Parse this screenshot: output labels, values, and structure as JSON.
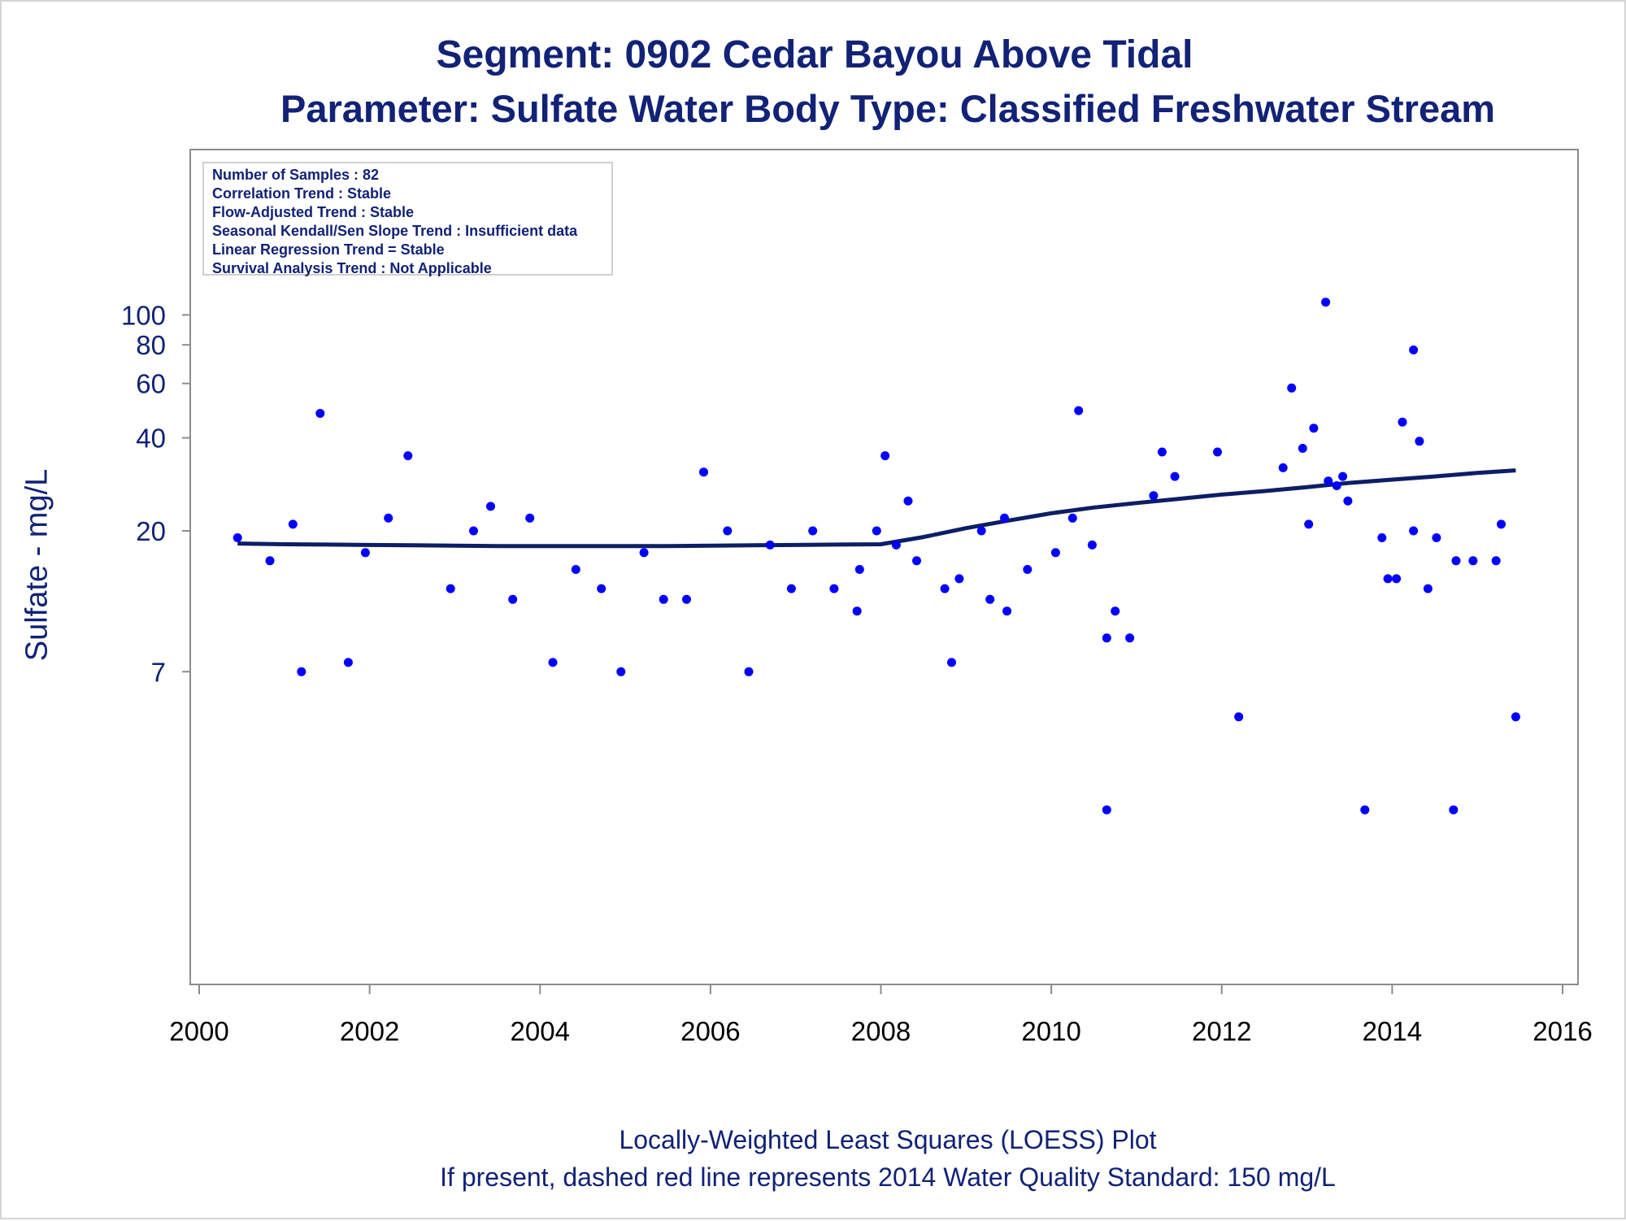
{
  "title": "Segment: 0902  Cedar Bayou Above Tidal",
  "subtitle": "Parameter: Sulfate   Water Body Type: Classified Freshwater Stream",
  "footnote1": "Locally-Weighted Least Squares (LOESS) Plot",
  "footnote2": "If present, dashed red line represents 2014 Water Quality Standard: 150   mg/L",
  "info_box": [
    "Number of Samples : 82",
    "Correlation Trend : Stable",
    "Flow-Adjusted Trend : Stable",
    "Seasonal Kendall/Sen Slope Trend : Insufficient data",
    "Linear Regression Trend = Stable",
    "Survival Analysis Trend : Not Applicable"
  ],
  "colors": {
    "text": "#112277",
    "points": "#0000ff",
    "loess_line": "#0b1f66",
    "axis": "#8c8c8c"
  },
  "chart_data": {
    "type": "scatter",
    "title": "Segment: 0902  Cedar Bayou Above Tidal",
    "subtitle": "Parameter: Sulfate   Water Body Type: Classified Freshwater Stream",
    "xlabel": "",
    "ylabel": "Sulfate - mg/L",
    "xlim": [
      2000,
      2016
    ],
    "ylim": [
      2.5,
      120
    ],
    "yscale": "log",
    "xticks": [
      2000,
      2002,
      2004,
      2006,
      2008,
      2010,
      2012,
      2014,
      2016
    ],
    "yticks": [
      7,
      20,
      40,
      60,
      80,
      100
    ],
    "grid": false,
    "legend": "none",
    "series": [
      {
        "type": "scatter",
        "x": [
          2000.45,
          2000.83,
          2001.1,
          2001.2,
          2001.42,
          2001.75,
          2001.95,
          2002.22,
          2002.45,
          2002.95,
          2003.22,
          2003.42,
          2003.68,
          2003.88,
          2004.15,
          2004.42,
          2004.72,
          2004.95,
          2005.22,
          2005.45,
          2005.72,
          2005.92,
          2006.2,
          2006.45,
          2006.7,
          2006.95,
          2007.2,
          2007.45,
          2007.72,
          2007.75,
          2007.95,
          2008.05,
          2008.18,
          2008.32,
          2008.42,
          2008.75,
          2008.83,
          2008.92,
          2009.18,
          2009.28,
          2009.45,
          2009.48,
          2009.72,
          2010.05,
          2010.25,
          2010.32,
          2010.48,
          2010.65,
          2010.65,
          2010.75,
          2010.92,
          2011.2,
          2011.3,
          2011.45,
          2011.95,
          2012.2,
          2012.72,
          2012.82,
          2012.95,
          2013.02,
          2013.08,
          2013.22,
          2013.25,
          2013.35,
          2013.42,
          2013.48,
          2013.68,
          2013.88,
          2013.95,
          2014.05,
          2014.12,
          2014.25,
          2014.25,
          2014.32,
          2014.42,
          2014.52,
          2014.72,
          2014.75,
          2014.95,
          2015.22,
          2015.28,
          2015.45
        ],
        "y": [
          19,
          16,
          21,
          7,
          48,
          7.5,
          17,
          22,
          35,
          13,
          20,
          24,
          12,
          22,
          7.5,
          15,
          13,
          7,
          17,
          12,
          12,
          31,
          20,
          7,
          18,
          13,
          20,
          13,
          11,
          15,
          20,
          35,
          18,
          25,
          16,
          13,
          7.5,
          14,
          20,
          12,
          22,
          11,
          15,
          17,
          22,
          49,
          18,
          2.5,
          9,
          11,
          9,
          26,
          36,
          30,
          36,
          5,
          32,
          58,
          37,
          21,
          43,
          110,
          29,
          28,
          30,
          25,
          2.5,
          19,
          14,
          14,
          45,
          20,
          77,
          39,
          13,
          19,
          2.5,
          16,
          16,
          16,
          21,
          5
        ]
      },
      {
        "type": "line",
        "name": "",
        "x": [
          2000.45,
          2001,
          2001.5,
          2002,
          2002.5,
          2003,
          2003.5,
          2004,
          2004.5,
          2005,
          2005.5,
          2006,
          2006.5,
          2007,
          2007.5,
          2008,
          2008.5,
          2009,
          2009.5,
          2010,
          2010.5,
          2011,
          2011.5,
          2012,
          2012.5,
          2013,
          2013.5,
          2014,
          2014.5,
          2015,
          2015.45
        ],
        "y": [
          18.2,
          18.1,
          18.05,
          18,
          17.95,
          17.9,
          17.85,
          17.85,
          17.85,
          17.85,
          17.85,
          17.9,
          17.95,
          18,
          18.05,
          18.1,
          19.1,
          20.4,
          21.6,
          22.8,
          23.8,
          24.6,
          25.4,
          26.2,
          26.9,
          27.7,
          28.6,
          29.3,
          30,
          30.8,
          31.4
        ]
      }
    ]
  }
}
